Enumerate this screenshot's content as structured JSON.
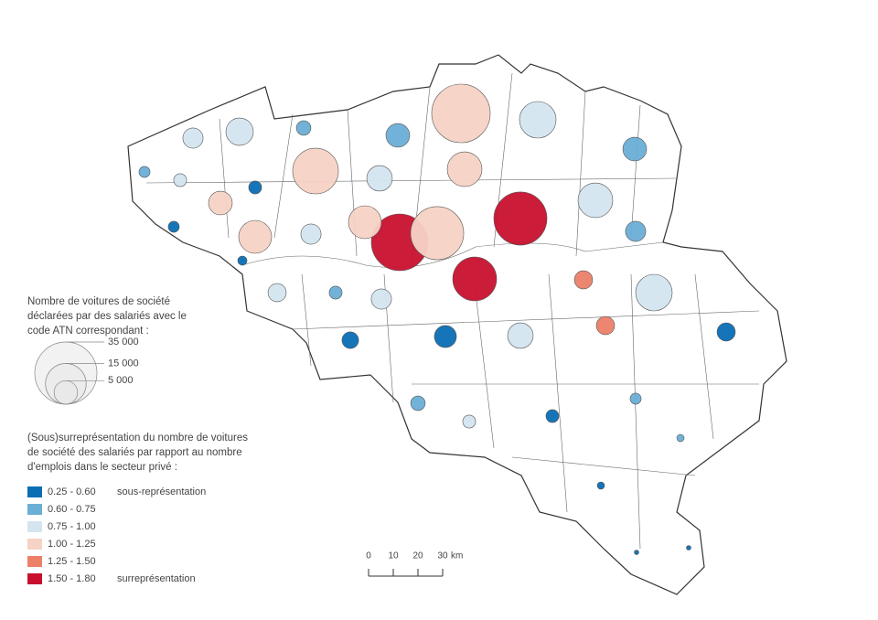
{
  "size_legend": {
    "title": "Nombre de voitures de société déclarées par des salariés avec le code ATN correspondant :",
    "sizes": [
      {
        "value": 35000,
        "label": "35 000"
      },
      {
        "value": 15000,
        "label": "15 000"
      },
      {
        "value": 5000,
        "label": "5 000"
      }
    ]
  },
  "color_legend": {
    "title": "(Sous)surreprésentation du nombre de voitures de société des salariés par rapport au nombre d'emplois dans le secteur privé :",
    "classes": [
      {
        "label": "0.25 - 0.60",
        "color": "#0a6eb4",
        "note": "sous-représentation"
      },
      {
        "label": "0.60 - 0.75",
        "color": "#6baed6"
      },
      {
        "label": "0.75 - 1.00",
        "color": "#d4e5f0"
      },
      {
        "label": "1.00 - 1.25",
        "color": "#f6d3c5"
      },
      {
        "label": "1.25 - 1.50",
        "color": "#ec8068"
      },
      {
        "label": "1.50 - 1.80",
        "color": "#c8102e",
        "note": "surreprésentation"
      }
    ]
  },
  "scale": {
    "ticks": [
      0,
      10,
      20,
      30
    ],
    "unit": "km"
  },
  "circles": [
    {
      "value": 3700,
      "class": 2
    },
    {
      "value": 6800,
      "class": 2
    },
    {
      "value": 1900,
      "class": 1
    },
    {
      "value": 5100,
      "class": 1
    },
    {
      "value": 31000,
      "class": 3
    },
    {
      "value": 12100,
      "class": 2
    },
    {
      "value": 5100,
      "class": 1
    },
    {
      "value": 1100,
      "class": 1
    },
    {
      "value": 1500,
      "class": 2
    },
    {
      "value": 1500,
      "class": 0
    },
    {
      "value": 18900,
      "class": 3
    },
    {
      "value": 5900,
      "class": 2
    },
    {
      "value": 10900,
      "class": 3
    },
    {
      "value": 5100,
      "class": 3
    },
    {
      "value": 10900,
      "class": 2
    },
    {
      "value": 1100,
      "class": 0
    },
    {
      "value": 9800,
      "class": 3
    },
    {
      "value": 3700,
      "class": 2
    },
    {
      "value": 9800,
      "class": 3
    },
    {
      "value": 29100,
      "class": 5
    },
    {
      "value": 25500,
      "class": 3
    },
    {
      "value": 25500,
      "class": 5
    },
    {
      "value": 3700,
      "class": 1
    },
    {
      "value": 17400,
      "class": 5
    },
    {
      "value": 760,
      "class": 0
    },
    {
      "value": 3000,
      "class": 4
    },
    {
      "value": 12100,
      "class": 2
    },
    {
      "value": 3000,
      "class": 2
    },
    {
      "value": 1500,
      "class": 1
    },
    {
      "value": 3700,
      "class": 2
    },
    {
      "value": 3000,
      "class": 4
    },
    {
      "value": 3000,
      "class": 0
    },
    {
      "value": 2500,
      "class": 0
    },
    {
      "value": 4400,
      "class": 0
    },
    {
      "value": 5900,
      "class": 2
    },
    {
      "value": 1900,
      "class": 1
    },
    {
      "value": 1100,
      "class": 1
    },
    {
      "value": 1500,
      "class": 0
    },
    {
      "value": 1500,
      "class": 2
    },
    {
      "value": 480,
      "class": 1
    },
    {
      "value": 480,
      "class": 0
    },
    {
      "value": 190,
      "class": 0
    },
    {
      "value": 190,
      "class": 0
    }
  ]
}
